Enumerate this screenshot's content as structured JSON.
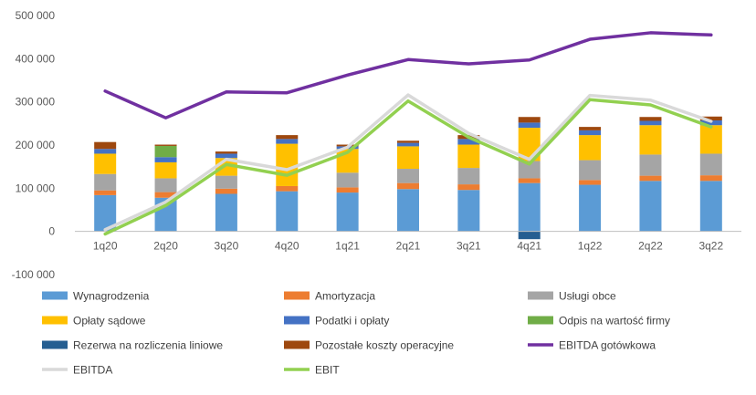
{
  "chart_data": {
    "type": "bar",
    "categories": [
      "1q20",
      "2q20",
      "3q20",
      "4q20",
      "1q21",
      "2q21",
      "3q21",
      "4q21",
      "1q22",
      "2q22",
      "3q22"
    ],
    "ylim": [
      -100000,
      500000
    ],
    "ytick_values": [
      -100000,
      0,
      100000,
      200000,
      300000,
      400000,
      500000
    ],
    "ytick_labels": [
      "-100 000",
      "0",
      "100 000",
      "200 000",
      "300 000",
      "400 000",
      "500 000"
    ],
    "grid": false,
    "legend_position": "bottom",
    "stacked_series": [
      {
        "name": "Wynagrodzenia",
        "color": "#5b9bd5",
        "values": [
          84000,
          78000,
          87000,
          93000,
          90000,
          98000,
          96000,
          112000,
          108000,
          117000,
          117000
        ]
      },
      {
        "name": "Amortyzacja",
        "color": "#ed7d31",
        "values": [
          11000,
          13000,
          12000,
          12000,
          12000,
          14000,
          13000,
          11000,
          11000,
          12000,
          13000
        ]
      },
      {
        "name": "Usługi obce",
        "color": "#a5a5a5",
        "values": [
          38000,
          32000,
          30000,
          0,
          34000,
          33000,
          38000,
          40000,
          46000,
          49000,
          50000
        ]
      },
      {
        "name": "Opłaty sądowe",
        "color": "#ffc000",
        "values": [
          47000,
          37000,
          41000,
          98000,
          55000,
          52000,
          54000,
          77000,
          58000,
          68000,
          66000
        ]
      },
      {
        "name": "Podatki i opłaty",
        "color": "#4472c4",
        "values": [
          11000,
          12000,
          10000,
          11000,
          6000,
          8000,
          13000,
          12000,
          11000,
          10000,
          11000
        ]
      },
      {
        "name": "Odpis na wartość firmy",
        "color": "#70ad47",
        "values": [
          0,
          26000,
          0,
          0,
          0,
          0,
          0,
          0,
          0,
          0,
          0
        ]
      },
      {
        "name": "Rezerwa na rozliczenia liniowe",
        "color": "#255e91",
        "values": [
          0,
          0,
          0,
          0,
          0,
          0,
          0,
          -18000,
          0,
          0,
          0
        ]
      },
      {
        "name": "Pozostałe koszty operacyjne",
        "color": "#9e480e",
        "values": [
          16000,
          3000,
          5000,
          9000,
          4000,
          5000,
          9000,
          13000,
          8000,
          9000,
          9000
        ]
      }
    ],
    "line_series": [
      {
        "name": "EBITDA gotówkowa",
        "color": "#7030a0",
        "values": [
          325000,
          263000,
          323000,
          321000,
          362000,
          398000,
          388000,
          397000,
          445000,
          460000,
          455000
        ]
      },
      {
        "name": "EBITDA",
        "color": "#d9d9d9",
        "values": [
          4000,
          68000,
          167000,
          143000,
          195000,
          316000,
          227000,
          167000,
          315000,
          304000,
          255000
        ]
      },
      {
        "name": "EBIT",
        "color": "#92d050",
        "values": [
          -6000,
          60000,
          155000,
          130000,
          183000,
          302000,
          218000,
          156000,
          305000,
          293000,
          242000
        ]
      }
    ],
    "legend": [
      "Wynagrodzenia",
      "Amortyzacja",
      "Usługi obce",
      "Opłaty sądowe",
      "Podatki i opłaty",
      "Odpis na wartość firmy",
      "Rezerwa na rozliczenia liniowe",
      "Pozostałe koszty operacyjne",
      "EBITDA gotówkowa",
      "EBITDA",
      "EBIT"
    ]
  }
}
